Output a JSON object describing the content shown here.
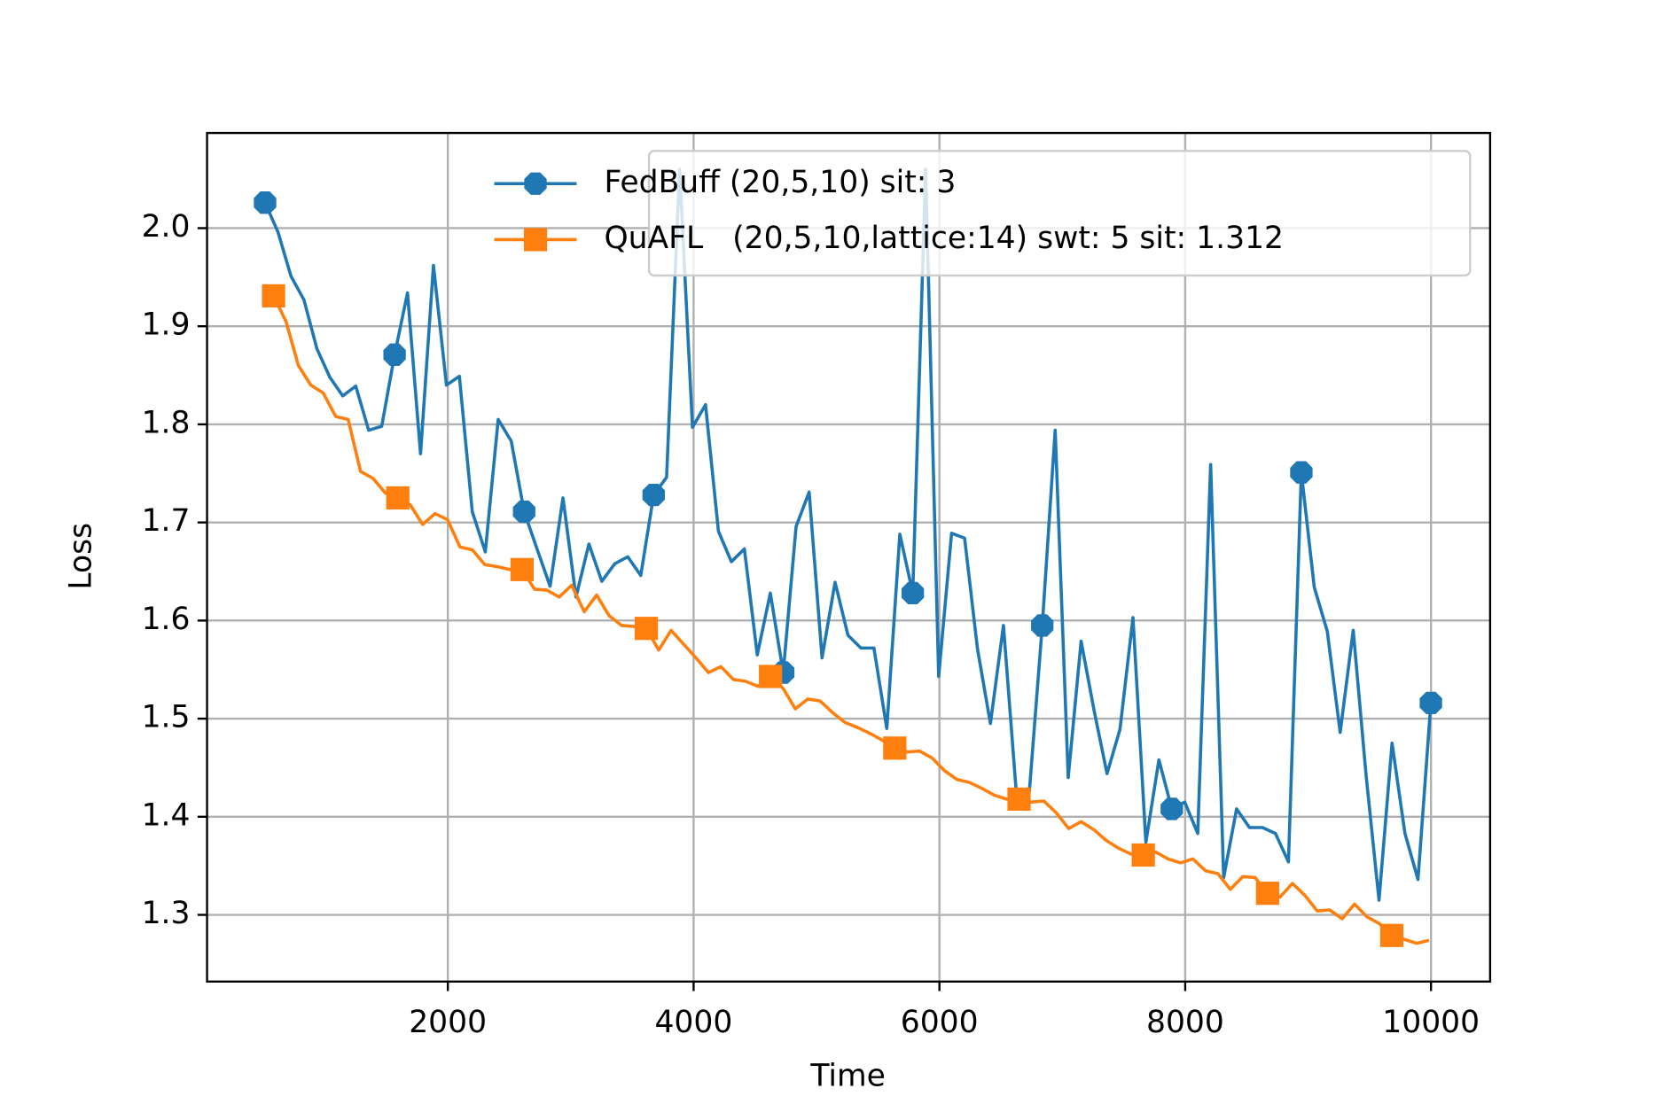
{
  "chart_data": {
    "type": "line",
    "xlabel": "Time",
    "ylabel": "Loss",
    "xlim": [
      41,
      10481
    ],
    "ylim": [
      1.232,
      2.097
    ],
    "xticks": [
      2000,
      4000,
      6000,
      8000,
      10000
    ],
    "yticks": [
      1.3,
      1.4,
      1.5,
      1.6,
      1.7,
      1.8,
      1.9,
      {
        "value": 2.0,
        "label": "2.0"
      }
    ],
    "grid": true,
    "legend": "upper right",
    "markevery": 10,
    "series": [
      {
        "name": "FedBuff (20,5,10) sit: 3",
        "color": "#1f77b4",
        "marker": "octagon",
        "x": [
          513,
          618,
          724,
          829,
          935,
          1040,
          1145,
          1251,
          1356,
          1462,
          1567,
          1672,
          1778,
          1883,
          1989,
          2094,
          2199,
          2305,
          2410,
          2516,
          2621,
          2726,
          2832,
          2937,
          3043,
          3148,
          3253,
          3359,
          3464,
          3570,
          3675,
          3780,
          3886,
          3991,
          4097,
          4202,
          4307,
          4413,
          4518,
          4624,
          4729,
          4834,
          4940,
          5045,
          5151,
          5256,
          5361,
          5467,
          5572,
          5678,
          5783,
          5888,
          5994,
          6099,
          6205,
          6310,
          6415,
          6521,
          6626,
          6732,
          6837,
          6942,
          7048,
          7153,
          7259,
          7364,
          7469,
          7575,
          7680,
          7786,
          7891,
          7996,
          8102,
          8207,
          8313,
          8418,
          8523,
          8629,
          8734,
          8840,
          8945,
          9050,
          9156,
          9261,
          9367,
          9472,
          9577,
          9683,
          9788,
          9894,
          9999
        ],
        "values": [
          2.026,
          1.996,
          1.951,
          1.927,
          1.877,
          1.848,
          1.829,
          1.839,
          1.794,
          1.798,
          1.871,
          1.934,
          1.77,
          1.962,
          1.84,
          1.849,
          1.711,
          1.67,
          1.805,
          1.783,
          1.711,
          1.673,
          1.635,
          1.725,
          1.624,
          1.678,
          1.64,
          1.658,
          1.665,
          1.646,
          1.728,
          1.746,
          2.06,
          1.797,
          1.82,
          1.691,
          1.66,
          1.673,
          1.565,
          1.628,
          1.547,
          1.696,
          1.731,
          1.562,
          1.639,
          1.585,
          1.572,
          1.572,
          1.49,
          1.688,
          1.628,
          2.06,
          1.543,
          1.689,
          1.684,
          1.571,
          1.495,
          1.595,
          1.424,
          1.426,
          1.595,
          1.794,
          1.44,
          1.579,
          1.508,
          1.444,
          1.489,
          1.603,
          1.374,
          1.458,
          1.408,
          1.415,
          1.383,
          1.759,
          1.338,
          1.408,
          1.389,
          1.389,
          1.383,
          1.354,
          1.751,
          1.634,
          1.589,
          1.486,
          1.59,
          1.442,
          1.315,
          1.475,
          1.383,
          1.336,
          1.516
        ]
      },
      {
        "name": "QuAFL   (20,5,10,lattice:14) swt: 5 sit: 1.312",
        "color": "#ff7f0e",
        "marker": "square",
        "x": [
          582,
          683,
          784,
          885,
          986,
          1088,
          1189,
          1290,
          1391,
          1492,
          1593,
          1694,
          1795,
          1896,
          1997,
          2099,
          2200,
          2301,
          2402,
          2503,
          2604,
          2705,
          2806,
          2907,
          3008,
          3110,
          3211,
          3312,
          3413,
          3514,
          3615,
          3716,
          3817,
          3918,
          4019,
          4121,
          4222,
          4323,
          4424,
          4525,
          4626,
          4727,
          4828,
          4929,
          5030,
          5132,
          5233,
          5334,
          5435,
          5536,
          5637,
          5738,
          5839,
          5940,
          6041,
          6143,
          6244,
          6345,
          6446,
          6547,
          6648,
          6749,
          6850,
          6951,
          7052,
          7154,
          7255,
          7356,
          7457,
          7558,
          7659,
          7760,
          7861,
          7962,
          8063,
          8165,
          8266,
          8367,
          8468,
          8569,
          8670,
          8771,
          8872,
          8973,
          9074,
          9176,
          9277,
          9378,
          9479,
          9580,
          9681,
          9782,
          9883,
          9984
        ],
        "values": [
          1.931,
          1.905,
          1.86,
          1.84,
          1.832,
          1.808,
          1.805,
          1.752,
          1.745,
          1.73,
          1.725,
          1.718,
          1.698,
          1.709,
          1.703,
          1.675,
          1.672,
          1.657,
          1.655,
          1.652,
          1.652,
          1.632,
          1.631,
          1.624,
          1.636,
          1.609,
          1.626,
          1.605,
          1.595,
          1.594,
          1.592,
          1.57,
          1.59,
          1.576,
          1.562,
          1.547,
          1.553,
          1.54,
          1.538,
          1.533,
          1.543,
          1.531,
          1.51,
          1.52,
          1.518,
          1.506,
          1.496,
          1.491,
          1.485,
          1.478,
          1.47,
          1.466,
          1.467,
          1.46,
          1.447,
          1.438,
          1.435,
          1.429,
          1.422,
          1.418,
          1.418,
          1.415,
          1.416,
          1.404,
          1.388,
          1.395,
          1.387,
          1.376,
          1.368,
          1.362,
          1.361,
          1.364,
          1.357,
          1.353,
          1.357,
          1.345,
          1.342,
          1.326,
          1.339,
          1.338,
          1.322,
          1.318,
          1.332,
          1.32,
          1.304,
          1.305,
          1.296,
          1.311,
          1.298,
          1.291,
          1.279,
          1.275,
          1.271,
          1.274
        ]
      }
    ]
  }
}
